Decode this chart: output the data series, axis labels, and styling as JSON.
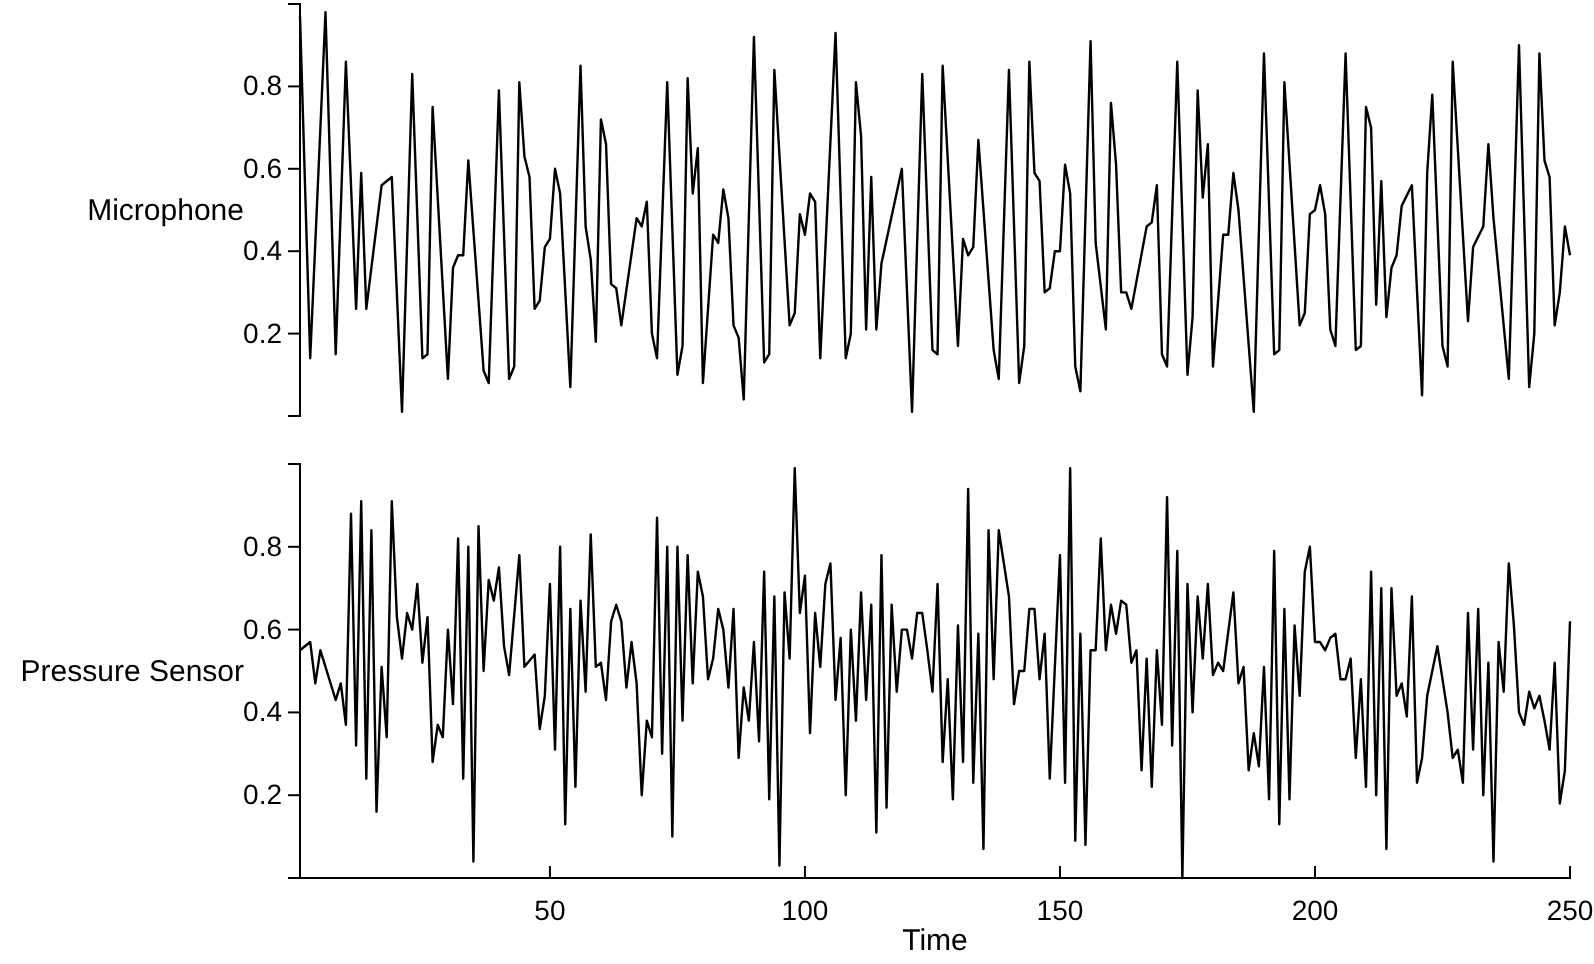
{
  "chart_data": [
    {
      "type": "line",
      "ylabel": "Microphone",
      "xlim": [
        1,
        250
      ],
      "ylim": [
        0,
        1
      ],
      "yticks": [
        0.2,
        0.4,
        0.6,
        0.8
      ],
      "tick_labels": "y",
      "grid": false,
      "series": [
        {
          "color": "#000000",
          "x": [
            1,
            3,
            6,
            8,
            10,
            12,
            13,
            14,
            17,
            19,
            21,
            23,
            25,
            26,
            27,
            30,
            31,
            32,
            33,
            34,
            37,
            38,
            40,
            42,
            43,
            44,
            45,
            46,
            47,
            48,
            49,
            50,
            51,
            52,
            54,
            56,
            57,
            58,
            59,
            60,
            61,
            62,
            63,
            64,
            67,
            68,
            69,
            70,
            71,
            73,
            75,
            76,
            77,
            78,
            79,
            80,
            82,
            83,
            84,
            85,
            86,
            87,
            88,
            90,
            92,
            93,
            94,
            97,
            98,
            99,
            100,
            101,
            102,
            103,
            106,
            108,
            109,
            110,
            111,
            112,
            113,
            114,
            115,
            119,
            121,
            123,
            125,
            126,
            127,
            130,
            131,
            132,
            133,
            134,
            137,
            138,
            140,
            142,
            143,
            144,
            145,
            146,
            147,
            148,
            149,
            150,
            151,
            152,
            153,
            154,
            156,
            157,
            159,
            160,
            161,
            162,
            163,
            164,
            167,
            168,
            169,
            170,
            171,
            173,
            175,
            176,
            177,
            178,
            179,
            180,
            182,
            183,
            184,
            185,
            188,
            190,
            192,
            193,
            194,
            197,
            198,
            199,
            200,
            201,
            202,
            203,
            204,
            206,
            208,
            209,
            210,
            211,
            212,
            213,
            214,
            215,
            216,
            217,
            219,
            221,
            222,
            223,
            225,
            226,
            227,
            230,
            231,
            233,
            234,
            235,
            238,
            240,
            242,
            243,
            244,
            245,
            246,
            247,
            248,
            249,
            250
          ],
          "values": [
            0.97,
            0.14,
            0.98,
            0.15,
            0.86,
            0.26,
            0.59,
            0.26,
            0.56,
            0.58,
            0.01,
            0.83,
            0.14,
            0.15,
            0.75,
            0.09,
            0.36,
            0.39,
            0.39,
            0.62,
            0.11,
            0.08,
            0.79,
            0.09,
            0.12,
            0.81,
            0.63,
            0.58,
            0.26,
            0.28,
            0.41,
            0.43,
            0.6,
            0.54,
            0.07,
            0.85,
            0.46,
            0.38,
            0.18,
            0.72,
            0.66,
            0.32,
            0.31,
            0.22,
            0.48,
            0.46,
            0.52,
            0.2,
            0.14,
            0.81,
            0.1,
            0.17,
            0.82,
            0.54,
            0.65,
            0.08,
            0.44,
            0.42,
            0.55,
            0.48,
            0.22,
            0.19,
            0.04,
            0.92,
            0.13,
            0.15,
            0.84,
            0.22,
            0.25,
            0.49,
            0.44,
            0.54,
            0.52,
            0.14,
            0.93,
            0.14,
            0.2,
            0.81,
            0.68,
            0.21,
            0.58,
            0.21,
            0.37,
            0.6,
            0.01,
            0.83,
            0.16,
            0.15,
            0.85,
            0.17,
            0.43,
            0.39,
            0.41,
            0.67,
            0.16,
            0.09,
            0.84,
            0.08,
            0.17,
            0.86,
            0.59,
            0.57,
            0.3,
            0.31,
            0.4,
            0.4,
            0.61,
            0.54,
            0.12,
            0.06,
            0.91,
            0.42,
            0.21,
            0.76,
            0.61,
            0.3,
            0.3,
            0.26,
            0.46,
            0.47,
            0.56,
            0.15,
            0.12,
            0.86,
            0.1,
            0.24,
            0.79,
            0.53,
            0.66,
            0.12,
            0.44,
            0.44,
            0.59,
            0.5,
            0.01,
            0.88,
            0.15,
            0.16,
            0.81,
            0.22,
            0.25,
            0.49,
            0.5,
            0.56,
            0.49,
            0.21,
            0.17,
            0.88,
            0.16,
            0.17,
            0.75,
            0.7,
            0.27,
            0.57,
            0.24,
            0.36,
            0.39,
            0.51,
            0.56,
            0.05,
            0.59,
            0.78,
            0.17,
            0.12,
            0.86,
            0.23,
            0.41,
            0.46,
            0.66,
            0.48,
            0.09,
            0.9,
            0.07,
            0.2,
            0.88,
            0.62,
            0.58,
            0.22,
            0.3,
            0.46,
            0.39
          ]
        }
      ]
    },
    {
      "type": "line",
      "ylabel": "Pressure Sensor",
      "xlabel": "Time",
      "xlim": [
        1,
        250
      ],
      "ylim": [
        0,
        1
      ],
      "xticks": [
        50,
        100,
        150,
        200,
        250
      ],
      "yticks": [
        0.2,
        0.4,
        0.6,
        0.8
      ],
      "grid": false,
      "series": [
        {
          "color": "#000000",
          "x": [
            1,
            3,
            4,
            5,
            8,
            9,
            10,
            11,
            12,
            13,
            14,
            15,
            16,
            17,
            18,
            19,
            20,
            21,
            22,
            23,
            24,
            25,
            26,
            27,
            28,
            29,
            30,
            31,
            32,
            33,
            34,
            35,
            36,
            37,
            38,
            39,
            40,
            41,
            42,
            44,
            45,
            47,
            48,
            49,
            50,
            51,
            52,
            53,
            54,
            55,
            56,
            57,
            58,
            59,
            60,
            61,
            62,
            63,
            64,
            65,
            66,
            67,
            68,
            69,
            70,
            71,
            72,
            73,
            74,
            75,
            76,
            77,
            78,
            79,
            80,
            81,
            82,
            83,
            84,
            85,
            86,
            87,
            88,
            89,
            90,
            91,
            92,
            93,
            94,
            95,
            96,
            97,
            98,
            99,
            100,
            101,
            102,
            103,
            104,
            105,
            106,
            107,
            108,
            109,
            110,
            111,
            112,
            113,
            114,
            115,
            116,
            117,
            118,
            119,
            120,
            121,
            122,
            123,
            124,
            125,
            126,
            127,
            128,
            129,
            130,
            131,
            132,
            133,
            134,
            135,
            136,
            137,
            138,
            140,
            141,
            142,
            143,
            144,
            145,
            146,
            147,
            148,
            150,
            151,
            152,
            153,
            154,
            155,
            156,
            157,
            158,
            159,
            160,
            161,
            162,
            163,
            164,
            165,
            166,
            167,
            168,
            169,
            170,
            171,
            172,
            173,
            174,
            175,
            176,
            177,
            178,
            179,
            180,
            181,
            182,
            184,
            185,
            186,
            187,
            188,
            189,
            190,
            191,
            192,
            193,
            194,
            195,
            196,
            197,
            198,
            199,
            200,
            201,
            202,
            203,
            204,
            205,
            206,
            207,
            208,
            209,
            210,
            211,
            212,
            213,
            214,
            215,
            216,
            217,
            218,
            219,
            220,
            221,
            222,
            224,
            226,
            227,
            228,
            229,
            230,
            231,
            232,
            233,
            234,
            235,
            236,
            237,
            238,
            239,
            240,
            241,
            242,
            243,
            244,
            245,
            246,
            247,
            248,
            249,
            250
          ],
          "values": [
            0.55,
            0.57,
            0.47,
            0.55,
            0.43,
            0.47,
            0.37,
            0.88,
            0.32,
            0.91,
            0.24,
            0.84,
            0.16,
            0.51,
            0.34,
            0.91,
            0.63,
            0.53,
            0.64,
            0.6,
            0.71,
            0.52,
            0.63,
            0.28,
            0.37,
            0.34,
            0.6,
            0.42,
            0.82,
            0.24,
            0.8,
            0.04,
            0.85,
            0.5,
            0.72,
            0.67,
            0.75,
            0.56,
            0.49,
            0.78,
            0.51,
            0.54,
            0.36,
            0.44,
            0.71,
            0.31,
            0.8,
            0.13,
            0.65,
            0.22,
            0.67,
            0.45,
            0.83,
            0.51,
            0.52,
            0.43,
            0.62,
            0.66,
            0.62,
            0.46,
            0.57,
            0.47,
            0.2,
            0.38,
            0.34,
            0.87,
            0.3,
            0.8,
            0.1,
            0.8,
            0.38,
            0.78,
            0.47,
            0.74,
            0.68,
            0.48,
            0.53,
            0.65,
            0.6,
            0.46,
            0.65,
            0.29,
            0.46,
            0.38,
            0.57,
            0.33,
            0.74,
            0.19,
            0.68,
            0.03,
            0.69,
            0.53,
            0.99,
            0.64,
            0.73,
            0.35,
            0.64,
            0.51,
            0.71,
            0.76,
            0.43,
            0.58,
            0.2,
            0.6,
            0.38,
            0.69,
            0.43,
            0.66,
            0.11,
            0.78,
            0.17,
            0.66,
            0.45,
            0.6,
            0.6,
            0.53,
            0.64,
            0.64,
            0.55,
            0.45,
            0.71,
            0.28,
            0.48,
            0.19,
            0.61,
            0.28,
            0.94,
            0.23,
            0.59,
            0.07,
            0.84,
            0.48,
            0.84,
            0.68,
            0.42,
            0.5,
            0.5,
            0.65,
            0.65,
            0.48,
            0.59,
            0.24,
            0.78,
            0.23,
            0.99,
            0.09,
            0.59,
            0.08,
            0.55,
            0.55,
            0.82,
            0.55,
            0.66,
            0.59,
            0.67,
            0.66,
            0.52,
            0.55,
            0.26,
            0.53,
            0.22,
            0.55,
            0.37,
            0.92,
            0.32,
            0.79,
            0,
            0.71,
            0.4,
            0.68,
            0.53,
            0.71,
            0.49,
            0.52,
            0.5,
            0.69,
            0.47,
            0.51,
            0.26,
            0.35,
            0.27,
            0.51,
            0.19,
            0.79,
            0.13,
            0.65,
            0.19,
            0.61,
            0.44,
            0.74,
            0.8,
            0.57,
            0.57,
            0.55,
            0.58,
            0.59,
            0.48,
            0.48,
            0.53,
            0.29,
            0.48,
            0.22,
            0.74,
            0.2,
            0.7,
            0.07,
            0.7,
            0.44,
            0.47,
            0.39,
            0.68,
            0.23,
            0.29,
            0.44,
            0.56,
            0.4,
            0.29,
            0.31,
            0.23,
            0.64,
            0.31,
            0.65,
            0.2,
            0.52,
            0.04,
            0.57,
            0.45,
            0.76,
            0.61,
            0.4,
            0.37,
            0.45,
            0.41,
            0.44,
            0.38,
            0.31,
            0.52,
            0.18,
            0.26,
            0.62
          ]
        }
      ]
    }
  ]
}
